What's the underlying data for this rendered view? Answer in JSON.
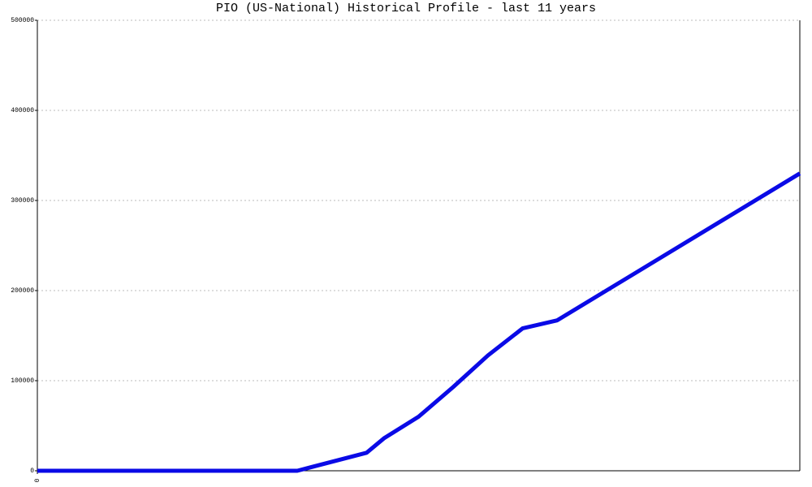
{
  "chart_data": {
    "type": "line",
    "title": "PIO (US-National) Historical Profile - last 11 years",
    "x": [
      0,
      3.75,
      4.75,
      5,
      5.5,
      6,
      6.5,
      7,
      7.5,
      11
    ],
    "series": [
      {
        "color": "#0a0ae6",
        "values": [
          0,
          0,
          20000,
          36000,
          60000,
          93000,
          128000,
          158000,
          167000,
          330000
        ]
      }
    ],
    "xlim": [
      0,
      11
    ],
    "xticks": [
      0
    ],
    "ylim": [
      0,
      500000
    ],
    "yticks": [
      0,
      100000,
      200000,
      300000,
      400000,
      500000
    ],
    "grid": true
  }
}
